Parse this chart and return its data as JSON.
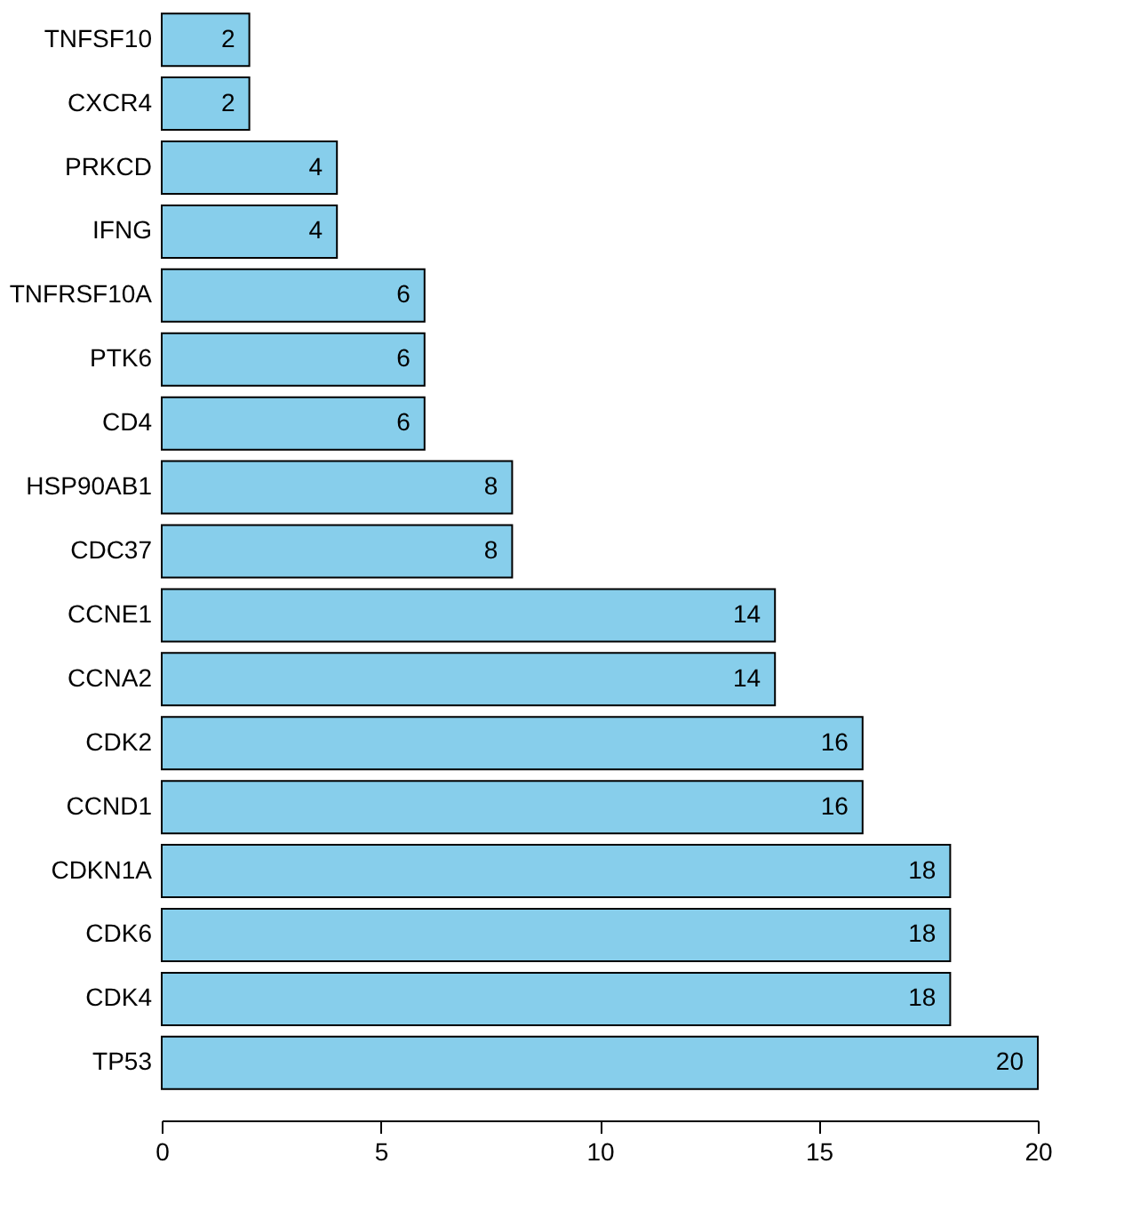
{
  "chart_data": {
    "type": "bar",
    "orientation": "horizontal",
    "categories": [
      "TNFSF10",
      "CXCR4",
      "PRKCD",
      "IFNG",
      "TNFRSF10A",
      "PTK6",
      "CD4",
      "HSP90AB1",
      "CDC37",
      "CCNE1",
      "CCNA2",
      "CDK2",
      "CCND1",
      "CDKN1A",
      "CDK6",
      "CDK4",
      "TP53"
    ],
    "values": [
      2,
      2,
      4,
      4,
      6,
      6,
      6,
      8,
      8,
      14,
      14,
      16,
      16,
      18,
      18,
      18,
      20
    ],
    "color": "#87ceeb",
    "xlim": [
      0,
      20
    ],
    "xticks": [
      0,
      5,
      10,
      15,
      20
    ],
    "data_labels": true,
    "grid": false
  }
}
